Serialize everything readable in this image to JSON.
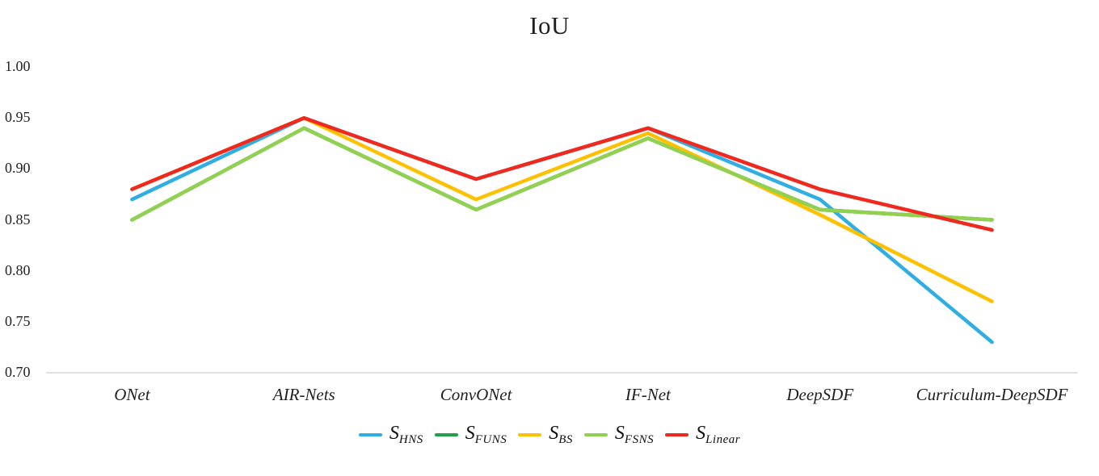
{
  "chart_data": {
    "type": "line",
    "title": "IoU",
    "categories": [
      "ONet",
      "AIR-Nets",
      "ConvONet",
      "IF-Net",
      "DeepSDF",
      "Curriculum-DeepSDF"
    ],
    "series": [
      {
        "name": "S_HNS",
        "label_base": "S",
        "label_sub": "HNS",
        "color": "#2FAEE3",
        "values": [
          0.87,
          0.95,
          0.89,
          0.94,
          0.87,
          0.73
        ]
      },
      {
        "name": "S_FUNS",
        "label_base": "S",
        "label_sub": "FUNS",
        "color": "#21A04A",
        "values": [
          0.85,
          0.94,
          0.86,
          0.93,
          0.86,
          0.85
        ]
      },
      {
        "name": "S_BS",
        "label_base": "S",
        "label_sub": "BS",
        "color": "#FFC000",
        "values": [
          0.88,
          0.95,
          0.87,
          0.935,
          0.855,
          0.77
        ]
      },
      {
        "name": "S_FSNS",
        "label_base": "S",
        "label_sub": "FSNS",
        "color": "#92D050",
        "values": [
          0.85,
          0.94,
          0.86,
          0.93,
          0.86,
          0.85
        ]
      },
      {
        "name": "S_Linear",
        "label_base": "S",
        "label_sub": "Linear",
        "color": "#F0291F",
        "values": [
          0.88,
          0.95,
          0.89,
          0.94,
          0.88,
          0.84
        ]
      }
    ],
    "ylim": [
      0.7,
      1.0
    ],
    "yticks": [
      "1.00",
      "0.95",
      "0.90",
      "0.85",
      "0.80",
      "0.75",
      "0.70"
    ],
    "grid": false,
    "legend_position": "bottom",
    "axis_line_color": "#D6D6D6"
  },
  "layout_text": {
    "title": "IoU"
  }
}
